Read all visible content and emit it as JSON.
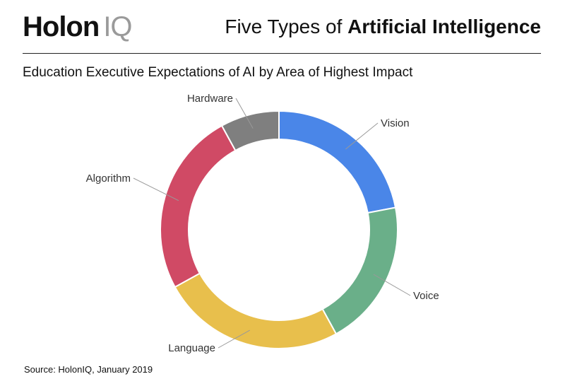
{
  "brand": {
    "main": "Holon",
    "suffix": "IQ"
  },
  "header": {
    "title_regular": "Five Types of ",
    "title_bold": "Artificial Intelligence"
  },
  "subtitle": "Education Executive Expectations of AI by Area of Highest Impact",
  "source": "Source: HolonIQ, January 2019",
  "chart_data": {
    "type": "pie",
    "variant": "donut",
    "title": "Education Executive Expectations of AI by Area of Highest Impact",
    "unit": "percent (estimated from slice angles)",
    "start": "top, clockwise",
    "slices": [
      {
        "label": "Vision",
        "value": 22,
        "color": "#4A86E8"
      },
      {
        "label": "Voice",
        "value": 20,
        "color": "#6AAF89"
      },
      {
        "label": "Language",
        "value": 25,
        "color": "#E8BF4C"
      },
      {
        "label": "Algorithm",
        "value": 25,
        "color": "#D04A65"
      },
      {
        "label": "Hardware",
        "value": 8,
        "color": "#7F7F7F"
      }
    ]
  }
}
